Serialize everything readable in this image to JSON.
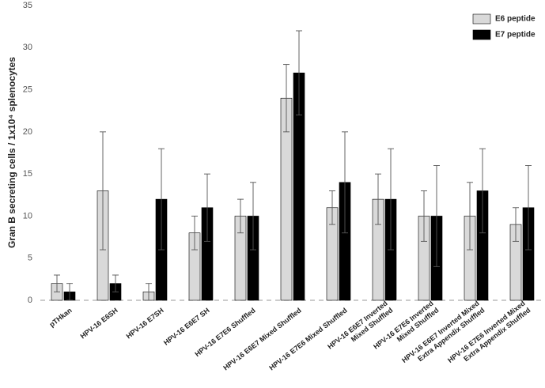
{
  "chart_data": {
    "type": "bar",
    "y_label": "Gran B secreting cells / 1x10⁴ splenocytes",
    "categories": [
      "pTHkan",
      "HPV-16 E6SH",
      "HPV-16 E7SH",
      "HPV-16 E6E7 SH",
      "HPV-16 E7E6 Shuffled",
      "HPV-16 E6E7 Mixed Shuffled",
      "HPV-16 E7E6 Mixed Shuffled",
      "HPV-16 E6E7 Inverted\nMixed Shuffled",
      "HPV-16 E7E6 Inverted\nMixed Shuffled",
      "HPV-16 E6E7 Inverted Mixed\nExtra Appendix Shuffled",
      "HPV-16 E7E6 Inverted Mixed\nExtra Appendix Shuffled"
    ],
    "series": [
      {
        "name": "E6 peptide",
        "color": "#d9d9d9",
        "values": [
          2,
          13,
          1,
          8,
          10,
          24,
          11,
          12,
          10,
          10,
          9
        ],
        "errors": [
          1,
          7,
          1,
          2,
          2,
          4,
          2,
          3,
          3,
          4,
          2
        ]
      },
      {
        "name": "E7 peptide",
        "color": "#000000",
        "values": [
          1,
          2,
          12,
          11,
          10,
          27,
          14,
          12,
          10,
          13,
          11
        ],
        "errors": [
          1,
          1,
          6,
          4,
          4,
          5,
          6,
          6,
          6,
          5,
          5
        ]
      }
    ],
    "ylim": [
      0,
      35
    ],
    "yticks": [
      0,
      5,
      10,
      15,
      20,
      25,
      30,
      35
    ],
    "grid": false,
    "legend": "top-right"
  }
}
